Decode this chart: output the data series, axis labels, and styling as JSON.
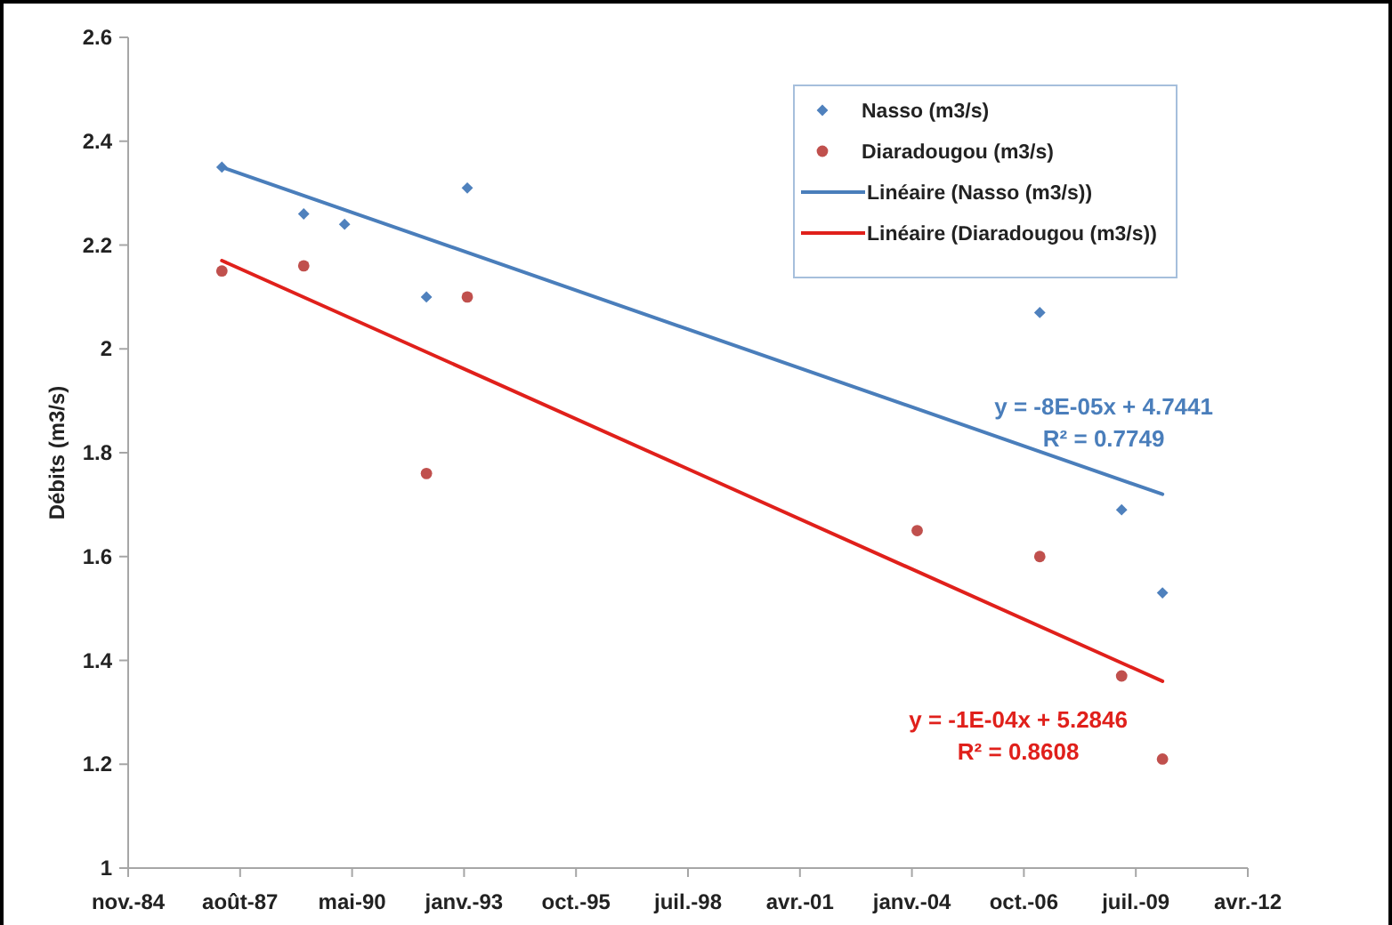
{
  "chart_data": {
    "type": "scatter",
    "ylabel": "Débits (m3/s)",
    "xlim": [
      "1984-11-14",
      "2012-04-01"
    ],
    "xticks": [
      {
        "value": "1984-11-14",
        "label": "nov.-84"
      },
      {
        "value": "1987-08-11",
        "label": "août-87"
      },
      {
        "value": "1990-05-07",
        "label": "mai-90"
      },
      {
        "value": "1993-01-31",
        "label": "janv.-93"
      },
      {
        "value": "1995-10-28",
        "label": "oct.-95"
      },
      {
        "value": "1998-07-24",
        "label": "juil.-98"
      },
      {
        "value": "2001-04-19",
        "label": "avr.-01"
      },
      {
        "value": "2004-01-14",
        "label": "janv.-04"
      },
      {
        "value": "2006-10-10",
        "label": "oct.-06"
      },
      {
        "value": "2009-07-06",
        "label": "juil.-09"
      },
      {
        "value": "2012-04-01",
        "label": "avr.-12"
      }
    ],
    "ylim": [
      1,
      2.6
    ],
    "yticks": [
      1,
      1.2,
      1.4,
      1.6,
      1.8,
      2,
      2.2,
      2.4,
      2.6
    ],
    "grid": false,
    "legend": "top right",
    "series": [
      {
        "name": "Nasso (m3/s)",
        "marker": "diamond",
        "color": "#4f81bd",
        "x": [
          "1987-03",
          "1989-03",
          "1990-03",
          "1992-03",
          "1993-03",
          "2007-03",
          "2009-03",
          "2010-03"
        ],
        "values": [
          2.35,
          2.26,
          2.24,
          2.1,
          2.31,
          2.07,
          1.69,
          1.53
        ]
      },
      {
        "name": "Diaradougou (m3/s)",
        "marker": "circle",
        "color": "#c0504d",
        "x": [
          "1987-03",
          "1989-03",
          "1992-03",
          "1993-03",
          "2004-03",
          "2007-03",
          "2009-03",
          "2010-03"
        ],
        "values": [
          2.15,
          2.16,
          1.76,
          2.1,
          1.65,
          1.6,
          1.37,
          1.21
        ]
      },
      {
        "name": "Linéaire (Nasso (m3/s))",
        "type": "line",
        "marker": "none",
        "line_style": "solid",
        "color": "#4a7ebb",
        "x": [
          "1987-03",
          "2010-03"
        ],
        "values": [
          2.35,
          1.72
        ]
      },
      {
        "name": "Linéaire (Diaradougou (m3/s))",
        "type": "line",
        "marker": "none",
        "line_style": "solid",
        "color": "#e0201b",
        "x": [
          "1987-03",
          "2010-03"
        ],
        "values": [
          2.17,
          1.36
        ]
      }
    ],
    "annotations": [
      "y = -8E-05x + 4.7441\nR² = 0.7749",
      "y = -1E-04x + 5.2846\nR² = 0.8608"
    ]
  }
}
